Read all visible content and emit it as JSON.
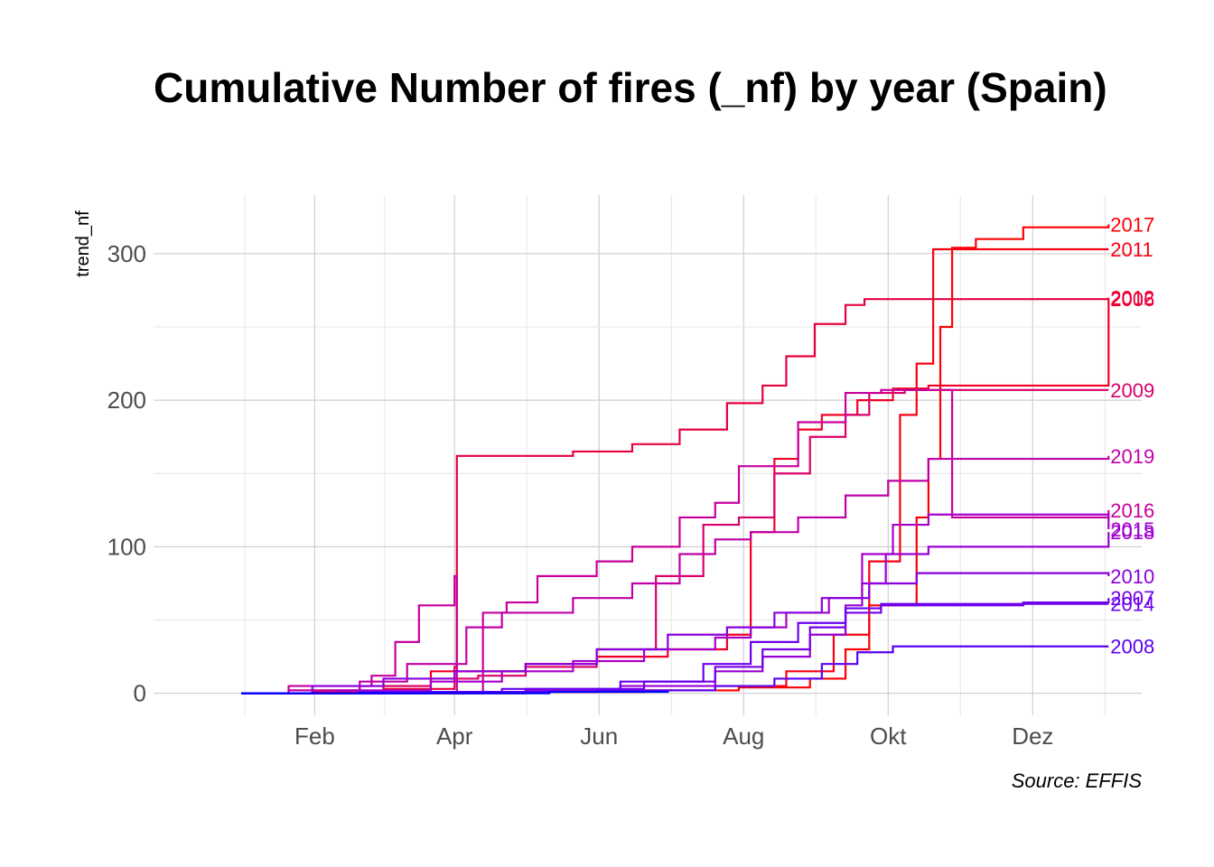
{
  "chart_data": {
    "type": "line",
    "title": "Cumulative Number of fires (_nf) by year (Spain)",
    "caption": "Source: EFFIS",
    "xlabel": "",
    "ylabel": "trend_nf",
    "x_unit": "day of year",
    "xlim": [
      -37,
      380
    ],
    "ylim": [
      -15,
      340
    ],
    "x_ticks": [
      {
        "value": 31,
        "label": "Feb"
      },
      {
        "value": 90,
        "label": "Apr"
      },
      {
        "value": 151,
        "label": "Jun"
      },
      {
        "value": 212,
        "label": "Aug"
      },
      {
        "value": 273,
        "label": "Okt"
      },
      {
        "value": 334,
        "label": "Dez"
      }
    ],
    "y_ticks": [
      0,
      100,
      200,
      300
    ],
    "grid": true,
    "legend": "direct labels at line ends (right)",
    "series": [
      {
        "name": "2017",
        "color": "#ff0000",
        "points": [
          [
            0,
            0
          ],
          [
            100,
            1
          ],
          [
            170,
            2
          ],
          [
            210,
            4
          ],
          [
            240,
            10
          ],
          [
            255,
            30
          ],
          [
            265,
            60
          ],
          [
            285,
            120
          ],
          [
            290,
            160
          ],
          [
            295,
            250
          ],
          [
            300,
            304
          ],
          [
            310,
            310
          ],
          [
            330,
            318
          ],
          [
            366,
            320
          ]
        ]
      },
      {
        "name": "2011",
        "color": "#f80012",
        "points": [
          [
            0,
            0
          ],
          [
            120,
            1
          ],
          [
            170,
            2
          ],
          [
            200,
            5
          ],
          [
            230,
            15
          ],
          [
            250,
            40
          ],
          [
            265,
            90
          ],
          [
            278,
            190
          ],
          [
            285,
            225
          ],
          [
            292,
            303
          ],
          [
            366,
            303
          ]
        ]
      },
      {
        "name": "2012",
        "color": "#f20024",
        "points": [
          [
            0,
            0
          ],
          [
            20,
            2
          ],
          [
            50,
            5
          ],
          [
            80,
            15
          ],
          [
            120,
            20
          ],
          [
            150,
            25
          ],
          [
            180,
            30
          ],
          [
            205,
            40
          ],
          [
            215,
            110
          ],
          [
            225,
            160
          ],
          [
            235,
            180
          ],
          [
            245,
            190
          ],
          [
            260,
            200
          ],
          [
            275,
            208
          ],
          [
            290,
            210
          ],
          [
            366,
            270
          ]
        ]
      },
      {
        "name": "2006",
        "color": "#e60040",
        "points": [
          [
            0,
            0
          ],
          [
            30,
            1
          ],
          [
            60,
            3
          ],
          [
            90,
            18
          ],
          [
            91,
            162
          ],
          [
            140,
            165
          ],
          [
            165,
            170
          ],
          [
            185,
            180
          ],
          [
            205,
            198
          ],
          [
            220,
            210
          ],
          [
            230,
            230
          ],
          [
            242,
            252
          ],
          [
            255,
            265
          ],
          [
            263,
            269
          ],
          [
            366,
            269
          ]
        ]
      },
      {
        "name": "2009",
        "color": "#d9006a",
        "points": [
          [
            0,
            0
          ],
          [
            30,
            2
          ],
          [
            60,
            5
          ],
          [
            80,
            10
          ],
          [
            100,
            12
          ],
          [
            120,
            18
          ],
          [
            150,
            30
          ],
          [
            175,
            80
          ],
          [
            195,
            115
          ],
          [
            210,
            120
          ],
          [
            225,
            150
          ],
          [
            240,
            175
          ],
          [
            255,
            190
          ],
          [
            265,
            205
          ],
          [
            280,
            207
          ],
          [
            366,
            207
          ]
        ]
      },
      {
        "name": "2016",
        "color": "#c7009c",
        "points": [
          [
            0,
            0
          ],
          [
            20,
            5
          ],
          [
            55,
            12
          ],
          [
            65,
            35
          ],
          [
            75,
            60
          ],
          [
            90,
            80
          ],
          [
            91,
            0
          ],
          [
            102,
            55
          ],
          [
            112,
            62
          ],
          [
            125,
            80
          ],
          [
            150,
            90
          ],
          [
            165,
            100
          ],
          [
            185,
            120
          ],
          [
            200,
            130
          ],
          [
            210,
            155
          ],
          [
            235,
            185
          ],
          [
            255,
            205
          ],
          [
            270,
            207
          ],
          [
            300,
            120
          ],
          [
            366,
            125
          ]
        ]
      },
      {
        "name": "2019",
        "color": "#c000a8",
        "points": [
          [
            0,
            0
          ],
          [
            20,
            2
          ],
          [
            50,
            8
          ],
          [
            70,
            20
          ],
          [
            95,
            45
          ],
          [
            110,
            55
          ],
          [
            140,
            65
          ],
          [
            165,
            75
          ],
          [
            185,
            95
          ],
          [
            200,
            105
          ],
          [
            215,
            110
          ],
          [
            235,
            120
          ],
          [
            255,
            135
          ],
          [
            273,
            145
          ],
          [
            290,
            160
          ],
          [
            366,
            162
          ]
        ]
      },
      {
        "name": "2015",
        "color": "#a800c8",
        "points": [
          [
            0,
            0
          ],
          [
            40,
            2
          ],
          [
            80,
            8
          ],
          [
            110,
            15
          ],
          [
            140,
            22
          ],
          [
            170,
            30
          ],
          [
            200,
            38
          ],
          [
            215,
            45
          ],
          [
            230,
            55
          ],
          [
            248,
            65
          ],
          [
            262,
            95
          ],
          [
            275,
            115
          ],
          [
            290,
            122
          ],
          [
            366,
            112
          ]
        ]
      },
      {
        "name": "2018",
        "color": "#9a00d4",
        "points": [
          [
            0,
            0
          ],
          [
            60,
            1
          ],
          [
            120,
            2
          ],
          [
            160,
            5
          ],
          [
            200,
            15
          ],
          [
            220,
            25
          ],
          [
            240,
            40
          ],
          [
            255,
            60
          ],
          [
            262,
            75
          ],
          [
            272,
            95
          ],
          [
            290,
            100
          ],
          [
            340,
            100
          ],
          [
            366,
            110
          ]
        ]
      },
      {
        "name": "2010",
        "color": "#8a00de",
        "points": [
          [
            0,
            0
          ],
          [
            30,
            5
          ],
          [
            60,
            10
          ],
          [
            90,
            15
          ],
          [
            120,
            20
          ],
          [
            150,
            30
          ],
          [
            180,
            40
          ],
          [
            205,
            45
          ],
          [
            225,
            55
          ],
          [
            245,
            65
          ],
          [
            265,
            75
          ],
          [
            285,
            82
          ],
          [
            366,
            80
          ]
        ]
      },
      {
        "name": "2007",
        "color": "#7600e8",
        "points": [
          [
            0,
            0
          ],
          [
            60,
            1
          ],
          [
            120,
            3
          ],
          [
            170,
            8
          ],
          [
            200,
            18
          ],
          [
            220,
            30
          ],
          [
            240,
            45
          ],
          [
            255,
            55
          ],
          [
            270,
            60
          ],
          [
            330,
            62
          ],
          [
            366,
            65
          ]
        ]
      },
      {
        "name": "2014",
        "color": "#6a00ee",
        "points": [
          [
            0,
            0
          ],
          [
            50,
            1
          ],
          [
            110,
            3
          ],
          [
            160,
            8
          ],
          [
            195,
            20
          ],
          [
            215,
            35
          ],
          [
            235,
            48
          ],
          [
            255,
            58
          ],
          [
            270,
            61
          ],
          [
            366,
            61
          ]
        ]
      },
      {
        "name": "2008",
        "color": "#5a00f2",
        "points": [
          [
            0,
            0
          ],
          [
            80,
            1
          ],
          [
            150,
            2
          ],
          [
            200,
            5
          ],
          [
            225,
            10
          ],
          [
            245,
            20
          ],
          [
            260,
            28
          ],
          [
            275,
            32
          ],
          [
            366,
            32
          ]
        ]
      },
      {
        "name": "",
        "color": "#0000ff",
        "points": [
          [
            0,
            0
          ],
          [
            130,
            1
          ],
          [
            170,
            1
          ],
          [
            180,
            2
          ]
        ]
      }
    ]
  }
}
